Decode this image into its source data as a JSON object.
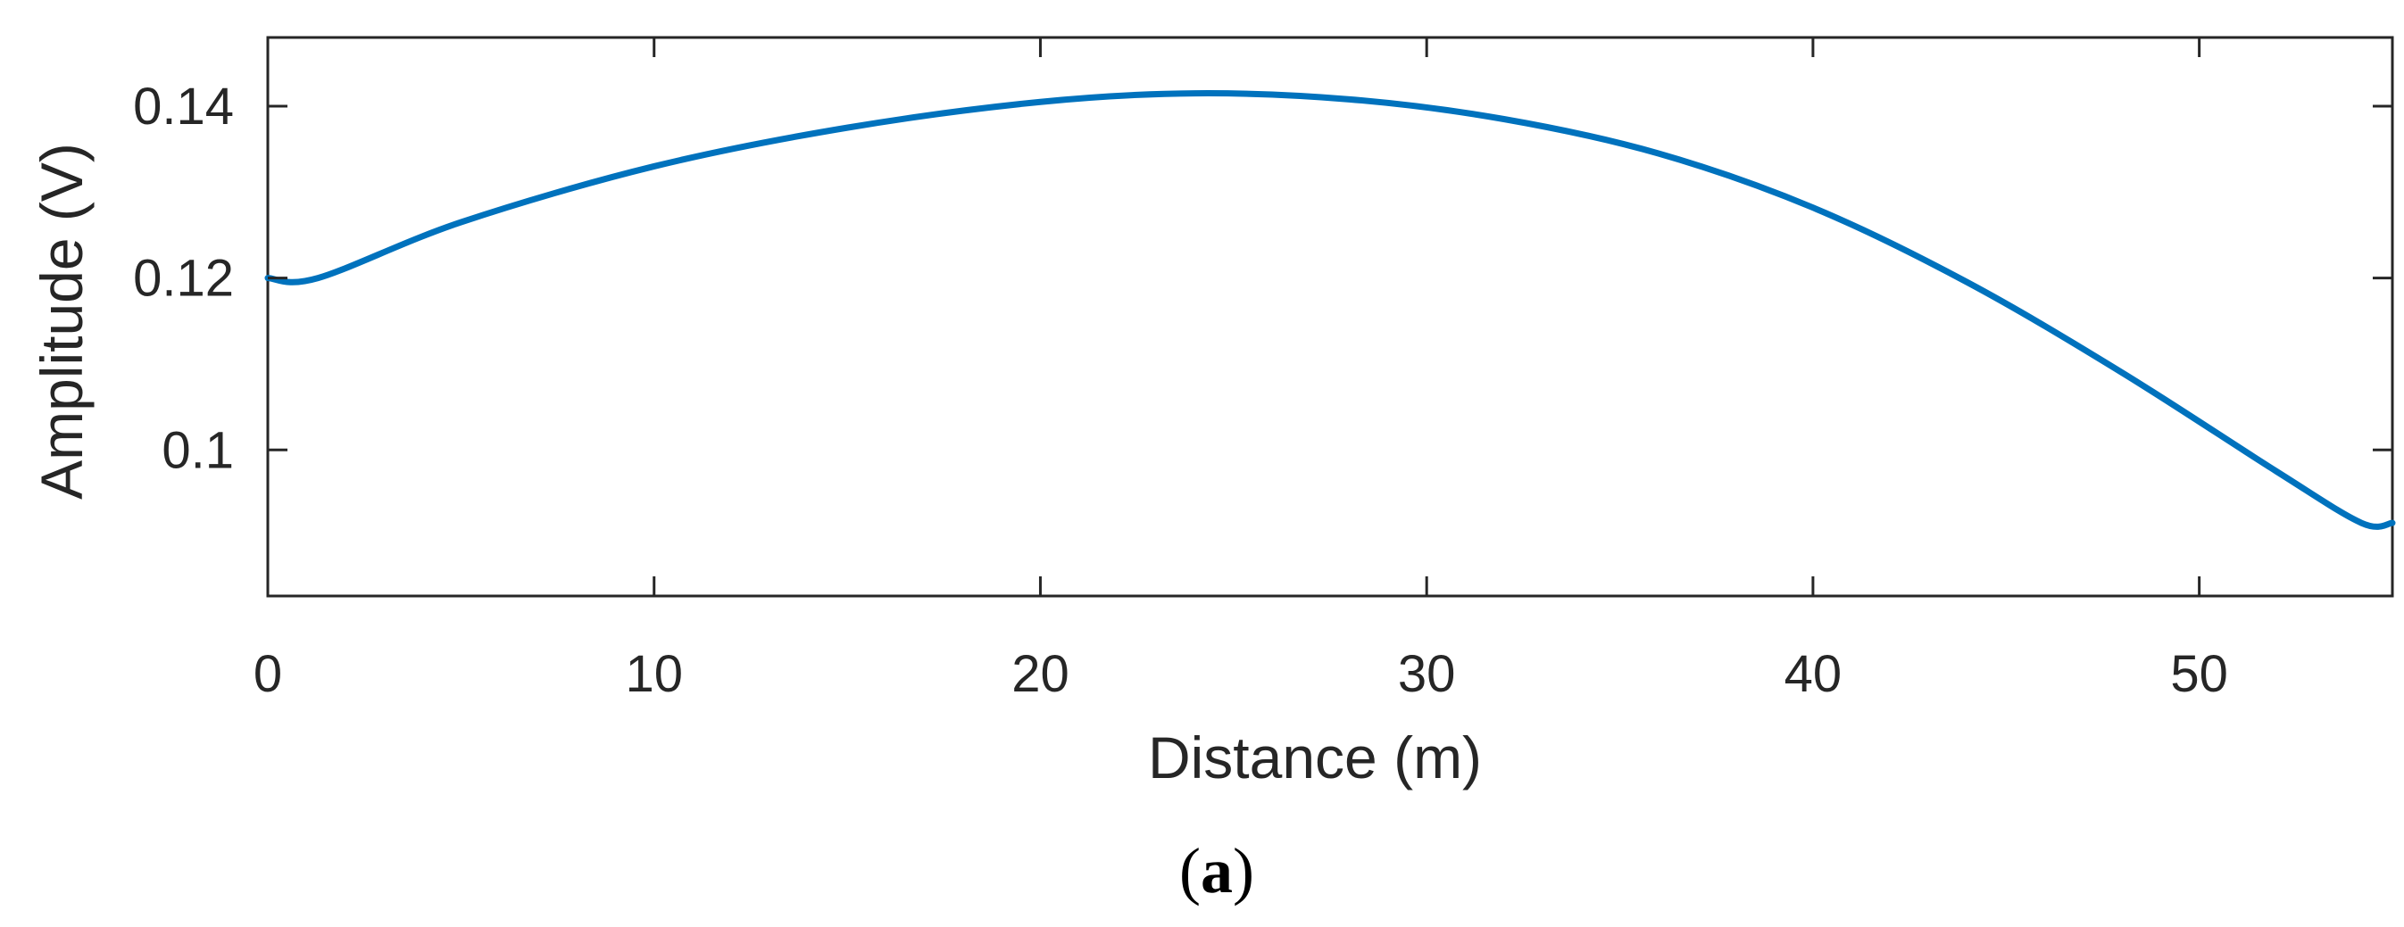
{
  "chart_data": {
    "type": "line",
    "xlabel": "Distance (m)",
    "ylabel": "Amplitude (V)",
    "xlim": [
      0,
      55
    ],
    "ylim": [
      0.083,
      0.148
    ],
    "xticks": [
      0,
      10,
      20,
      30,
      40,
      50
    ],
    "yticks": [
      0.1,
      0.12,
      0.14
    ],
    "ytick_labels": [
      "0.1",
      "0.12",
      "0.14"
    ],
    "grid": false,
    "series": [
      {
        "color": "#0072BD",
        "x": [
          0,
          1.3,
          5,
          10,
          15,
          20,
          24,
          28,
          32,
          36,
          40,
          44,
          48,
          52,
          54.2,
          55
        ],
        "y": [
          0.12,
          0.12,
          0.1265,
          0.133,
          0.1375,
          0.1405,
          0.1415,
          0.1408,
          0.1385,
          0.1345,
          0.1282,
          0.1195,
          0.109,
          0.0975,
          0.0915,
          0.0915
        ]
      }
    ]
  },
  "caption": {
    "open": "(",
    "letter": "a",
    "close": ")"
  }
}
